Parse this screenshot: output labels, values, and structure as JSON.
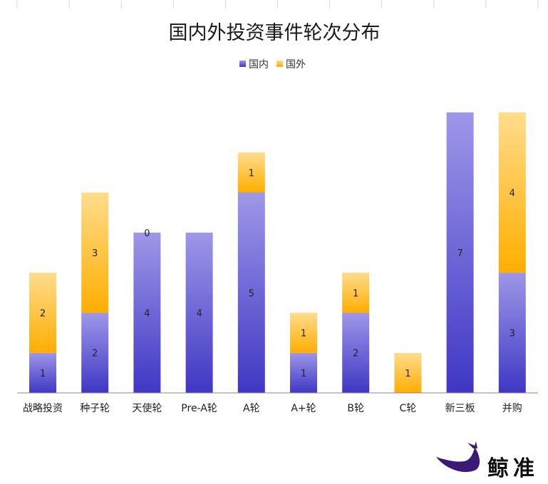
{
  "chart_data": {
    "type": "bar",
    "stacked": true,
    "title": "国内外投资事件轮次分布",
    "categories": [
      "战略投资",
      "种子轮",
      "天使轮",
      "Pre-A轮",
      "A轮",
      "A+轮",
      "B轮",
      "C轮",
      "新三板",
      "并购"
    ],
    "series": [
      {
        "name": "国内",
        "values": [
          1,
          2,
          4,
          4,
          5,
          1,
          2,
          0,
          7,
          3
        ],
        "labels": [
          "1",
          "2",
          "4",
          "4",
          "5",
          "1",
          "2",
          "",
          "7",
          "3"
        ]
      },
      {
        "name": "国外",
        "values": [
          2,
          3,
          0,
          0,
          1,
          1,
          1,
          1,
          0,
          4
        ],
        "labels": [
          "2",
          "3",
          "0",
          "",
          "1",
          "1",
          "1",
          "1",
          "",
          "4"
        ]
      }
    ],
    "ylim": [
      0,
      7
    ],
    "legend_position": "top",
    "grid": false,
    "colors": {
      "domestic_top": "#9e97e8",
      "domestic_bottom": "#3f37c4",
      "foreign_top": "#ffdc8c",
      "foreign_bottom": "#ffae00"
    }
  },
  "brand": {
    "name": "鲸准"
  }
}
